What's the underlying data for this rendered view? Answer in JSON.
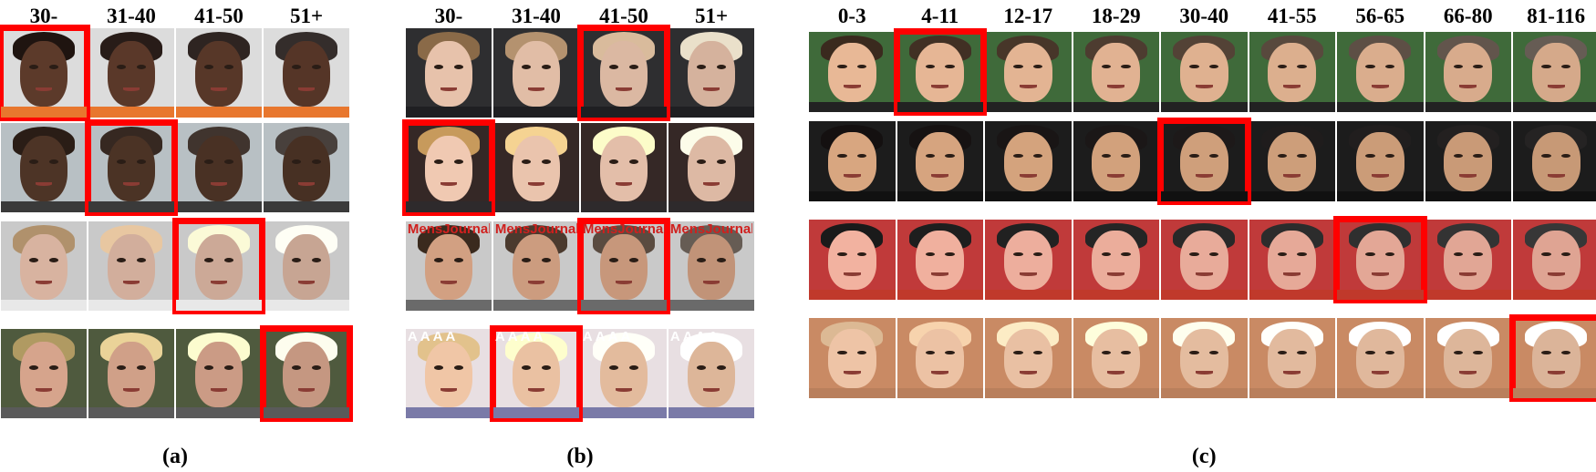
{
  "panels": [
    {
      "caption": "(a)",
      "age_groups": [
        "30-",
        "31-40",
        "41-50",
        "51+"
      ],
      "selected_index_per_row": [
        0,
        1,
        2,
        3
      ],
      "row_styles": [
        {
          "bg": "#dcdcdc",
          "skin": "#5c3a2a",
          "hair": "#1f1410",
          "shirt": "#e8772e"
        },
        {
          "bg": "#b8c0c4",
          "skin": "#4d3426",
          "hair": "#2a1d16",
          "shirt": "#3a3a3a"
        },
        {
          "bg": "#c9c9c9",
          "skin": "#d8b3a0",
          "hair": "#b0916c",
          "shirt": "#e8e8e8"
        },
        {
          "bg": "#4f5a3e",
          "skin": "#d6a48c",
          "hair": "#b09a62",
          "shirt": "#5a5a5a"
        }
      ]
    },
    {
      "caption": "(b)",
      "age_groups": [
        "30-",
        "31-40",
        "41-50",
        "51+"
      ],
      "selected_index_per_row": [
        2,
        0,
        2,
        1
      ],
      "row_magazine_text": [
        "",
        "",
        "MensJournal",
        "A A A A"
      ],
      "row_styles": [
        {
          "bg": "#2e2e30",
          "skin": "#e7c2ab",
          "hair": "#8a6a48",
          "shirt": "#1f1f22"
        },
        {
          "bg": "#352826",
          "skin": "#f0c9b2",
          "hair": "#c79a5c",
          "shirt": "#2e2a2c"
        },
        {
          "bg": "#c9c9c9",
          "skin": "#d2a082",
          "hair": "#3a2a1e",
          "shirt": "#6a6a6a",
          "mag": "#d0201e"
        },
        {
          "bg": "#e8dfe2",
          "skin": "#f0c6a6",
          "hair": "#e2c28c",
          "shirt": "#7a7aa8",
          "mag": "#ffffff"
        }
      ]
    },
    {
      "caption": "(c)",
      "age_groups": [
        "0-3",
        "4-11",
        "12-17",
        "18-29",
        "30-40",
        "41-55",
        "56-65",
        "66-80",
        "81-116"
      ],
      "selected_index_per_row": [
        1,
        4,
        6,
        8
      ],
      "row_styles": [
        {
          "bg": "#3f6a3a",
          "skin": "#e8b896",
          "hair": "#3a2a1e",
          "shirt": "#222222"
        },
        {
          "bg": "#1c1c1c",
          "skin": "#d8a680",
          "hair": "#141010",
          "shirt": "#111111"
        },
        {
          "bg": "#c03a3a",
          "skin": "#f2b2a0",
          "hair": "#1a1a1a",
          "shirt": "#c0392b"
        },
        {
          "bg": "#c98a64",
          "skin": "#eec4a6",
          "hair": "#dcb994",
          "shirt": "#b97f5c"
        }
      ]
    }
  ]
}
